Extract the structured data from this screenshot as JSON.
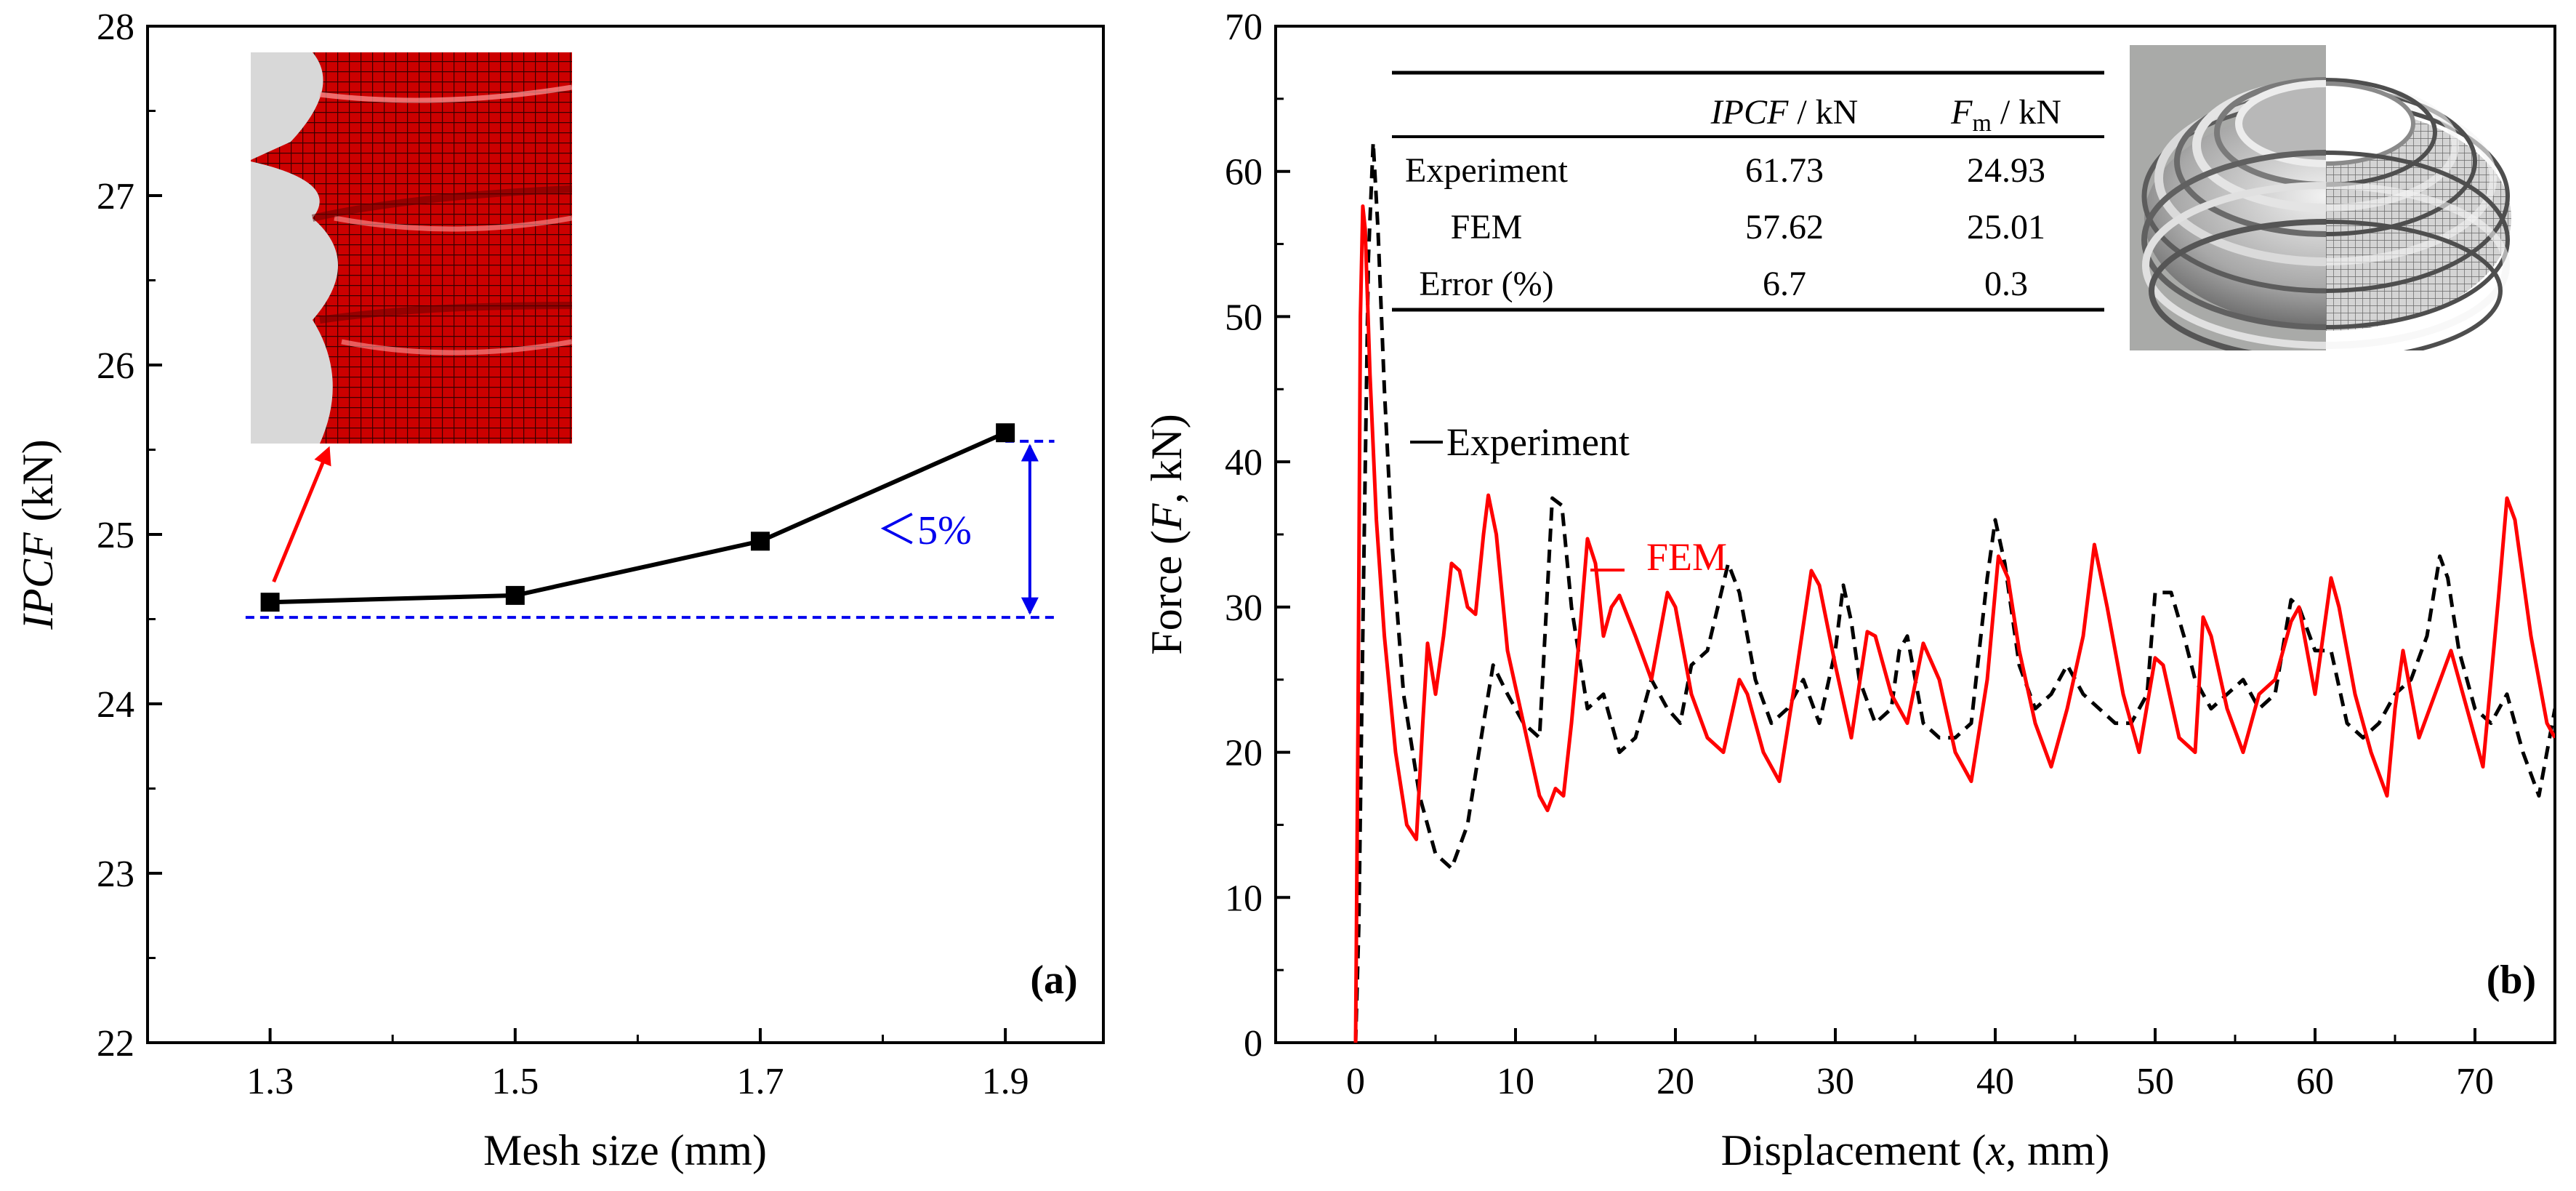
{
  "chart_data": [
    {
      "panel": "a",
      "type": "line",
      "panel_label": "(a)",
      "xlabel": "Mesh size (mm)",
      "ylabel": {
        "italic": "IPCF",
        "rest": " (kN)"
      },
      "x": [
        1.3,
        1.5,
        1.7,
        1.9
      ],
      "x_tick_labels": [
        "1.3",
        "1.5",
        "1.7",
        "1.9"
      ],
      "values": [
        24.6,
        24.64,
        24.96,
        25.6
      ],
      "y_tick_labels": [
        "22",
        "23",
        "24",
        "25",
        "26",
        "27",
        "28"
      ],
      "xlim": [
        1.2,
        1.98
      ],
      "ylim": [
        22,
        28
      ],
      "annotation": {
        "text": "＜5%",
        "upper": 25.55,
        "lower": 24.51,
        "color": "#0000ee"
      },
      "inset_description": "red mesh tube close-up"
    },
    {
      "panel": "b",
      "type": "line",
      "panel_label": "(b)",
      "xlabel": {
        "pre": "Displacement (",
        "italic": "x",
        "post": ", mm)"
      },
      "ylabel": {
        "pre": "Force (",
        "italic": "F",
        "post": ", kN)"
      },
      "xlim": [
        -5,
        75
      ],
      "ylim": [
        0,
        70
      ],
      "x_ticks": [
        0,
        10,
        20,
        30,
        40,
        50,
        60,
        70
      ],
      "x_tick_labels": [
        "0",
        "10",
        "20",
        "30",
        "40",
        "50",
        "60",
        "70"
      ],
      "y_ticks": [
        0,
        10,
        20,
        30,
        40,
        50,
        60,
        70
      ],
      "y_tick_labels": [
        "0",
        "10",
        "20",
        "30",
        "40",
        "50",
        "60",
        "70"
      ],
      "series": [
        {
          "name": "Experiment",
          "color": "#000000",
          "dash": true,
          "points": [
            [
              0,
              0
            ],
            [
              0.2,
              8
            ],
            [
              0.5,
              32
            ],
            [
              0.8,
              54
            ],
            [
              1.1,
              62
            ],
            [
              1.4,
              56
            ],
            [
              1.8,
              45
            ],
            [
              2.3,
              34
            ],
            [
              3,
              24
            ],
            [
              4,
              17
            ],
            [
              5,
              13
            ],
            [
              6,
              12
            ],
            [
              7,
              15
            ],
            [
              8,
              22
            ],
            [
              8.6,
              26
            ],
            [
              9.5,
              24
            ],
            [
              10.5,
              22
            ],
            [
              11.5,
              21
            ],
            [
              12.3,
              37.5
            ],
            [
              12.9,
              37
            ],
            [
              13.5,
              30
            ],
            [
              14.5,
              23
            ],
            [
              15.5,
              24
            ],
            [
              16.5,
              20
            ],
            [
              17.5,
              21
            ],
            [
              18.5,
              25
            ],
            [
              19.5,
              23
            ],
            [
              20.3,
              22
            ],
            [
              21,
              26
            ],
            [
              22,
              27
            ],
            [
              23.3,
              33
            ],
            [
              24,
              31
            ],
            [
              25,
              25
            ],
            [
              26,
              22
            ],
            [
              27,
              23
            ],
            [
              28,
              25
            ],
            [
              29,
              22
            ],
            [
              30,
              27
            ],
            [
              30.5,
              31.5
            ],
            [
              31,
              29
            ],
            [
              31.5,
              25
            ],
            [
              32.5,
              22
            ],
            [
              33.5,
              23
            ],
            [
              34,
              27
            ],
            [
              34.5,
              28
            ],
            [
              35.5,
              22
            ],
            [
              36.5,
              21
            ],
            [
              37.5,
              21
            ],
            [
              38.5,
              22
            ],
            [
              39.5,
              32
            ],
            [
              40,
              36
            ],
            [
              40.6,
              33
            ],
            [
              41.5,
              26
            ],
            [
              42.5,
              23
            ],
            [
              43.5,
              24
            ],
            [
              44.5,
              26
            ],
            [
              45.5,
              24
            ],
            [
              46.5,
              23
            ],
            [
              47.5,
              22
            ],
            [
              48.5,
              22
            ],
            [
              49.5,
              24
            ],
            [
              50,
              31
            ],
            [
              51,
              31
            ],
            [
              51.8,
              28
            ],
            [
              52.5,
              25
            ],
            [
              53.5,
              23
            ],
            [
              54.5,
              24
            ],
            [
              55.5,
              25
            ],
            [
              56.5,
              23
            ],
            [
              57.5,
              24
            ],
            [
              58.5,
              30.5
            ],
            [
              59,
              30
            ],
            [
              60,
              27
            ],
            [
              61,
              27
            ],
            [
              62,
              22
            ],
            [
              63,
              21
            ],
            [
              64,
              22
            ],
            [
              65,
              24
            ],
            [
              66,
              25
            ],
            [
              67,
              28
            ],
            [
              67.8,
              33.5
            ],
            [
              68.3,
              32
            ],
            [
              69,
              27
            ],
            [
              70,
              23
            ],
            [
              71,
              22
            ],
            [
              72,
              24
            ],
            [
              73,
              20
            ],
            [
              74,
              17
            ],
            [
              74.5,
              20
            ],
            [
              75,
              23
            ]
          ]
        },
        {
          "name": "FEM",
          "color": "#ff0000",
          "dash": false,
          "points": [
            [
              0,
              0
            ],
            [
              0.15,
              22
            ],
            [
              0.3,
              50
            ],
            [
              0.45,
              57.6
            ],
            [
              0.6,
              56
            ],
            [
              0.9,
              46
            ],
            [
              1.3,
              36
            ],
            [
              1.8,
              28
            ],
            [
              2.5,
              20
            ],
            [
              3.2,
              15
            ],
            [
              3.8,
              14
            ],
            [
              4.2,
              22
            ],
            [
              4.5,
              27.5
            ],
            [
              5,
              24
            ],
            [
              5.5,
              28
            ],
            [
              6,
              33
            ],
            [
              6.5,
              32.5
            ],
            [
              7,
              30
            ],
            [
              7.5,
              29.5
            ],
            [
              8,
              35
            ],
            [
              8.3,
              37.7
            ],
            [
              8.8,
              35
            ],
            [
              9.5,
              27
            ],
            [
              10.5,
              22
            ],
            [
              11.5,
              17
            ],
            [
              12,
              16
            ],
            [
              12.5,
              17.5
            ],
            [
              13,
              17
            ],
            [
              13.5,
              22
            ],
            [
              14,
              28
            ],
            [
              14.5,
              34.7
            ],
            [
              15,
              33
            ],
            [
              15.5,
              28
            ],
            [
              16,
              30
            ],
            [
              16.5,
              30.8
            ],
            [
              17.5,
              28
            ],
            [
              18.5,
              25
            ],
            [
              19.5,
              31
            ],
            [
              20,
              30
            ],
            [
              21,
              24
            ],
            [
              22,
              21
            ],
            [
              23,
              20
            ],
            [
              24,
              25
            ],
            [
              24.5,
              24
            ],
            [
              25.5,
              20
            ],
            [
              26.5,
              18
            ],
            [
              27.5,
              25
            ],
            [
              28.5,
              32.5
            ],
            [
              29,
              31.5
            ],
            [
              30,
              26
            ],
            [
              31,
              21
            ],
            [
              32,
              28.3
            ],
            [
              32.5,
              28
            ],
            [
              33.5,
              24
            ],
            [
              34.5,
              22
            ],
            [
              35.5,
              27.5
            ],
            [
              36.5,
              25
            ],
            [
              37.5,
              20
            ],
            [
              38.5,
              18
            ],
            [
              39.5,
              25
            ],
            [
              40.2,
              33.5
            ],
            [
              40.8,
              32
            ],
            [
              41.5,
              27
            ],
            [
              42.5,
              22
            ],
            [
              43.5,
              19
            ],
            [
              44.5,
              23
            ],
            [
              45.5,
              28
            ],
            [
              46.2,
              34.3
            ],
            [
              47,
              30
            ],
            [
              48,
              24
            ],
            [
              49,
              20
            ],
            [
              50,
              26.5
            ],
            [
              50.5,
              26
            ],
            [
              51.5,
              21
            ],
            [
              52.5,
              20
            ],
            [
              53,
              29.3
            ],
            [
              53.5,
              28
            ],
            [
              54.5,
              23
            ],
            [
              55.5,
              20
            ],
            [
              56.5,
              24
            ],
            [
              57.5,
              25
            ],
            [
              58.5,
              29
            ],
            [
              59,
              30
            ],
            [
              60,
              24
            ],
            [
              61,
              32
            ],
            [
              61.5,
              30
            ],
            [
              62.5,
              24
            ],
            [
              63.5,
              20
            ],
            [
              64.5,
              17
            ],
            [
              65,
              23
            ],
            [
              65.5,
              27
            ],
            [
              66.5,
              21
            ],
            [
              67.5,
              24
            ],
            [
              68.5,
              27
            ],
            [
              69.5,
              23
            ],
            [
              70.5,
              19
            ],
            [
              71.5,
              31
            ],
            [
              72,
              37.5
            ],
            [
              72.5,
              36
            ],
            [
              73.5,
              28
            ],
            [
              74.5,
              22
            ],
            [
              75,
              21
            ]
          ]
        }
      ],
      "legend_labels": {
        "experiment": "Experiment",
        "fem": "FEM"
      },
      "inset_table": {
        "headers": [
          {
            "italic": "",
            "sub": "",
            "rest": ""
          },
          {
            "italic": "IPCF",
            "sub": "",
            "rest": " / kN"
          },
          {
            "italic": "F",
            "sub": "m",
            "rest": " / kN"
          }
        ],
        "rows": [
          [
            "Experiment",
            "61.73",
            "24.93"
          ],
          [
            "FEM",
            "57.62",
            "25.01"
          ],
          [
            "Error (%)",
            "6.7",
            "0.3"
          ]
        ]
      },
      "inset_photo_description": "coiled metal tube, half photo half mesh"
    }
  ]
}
